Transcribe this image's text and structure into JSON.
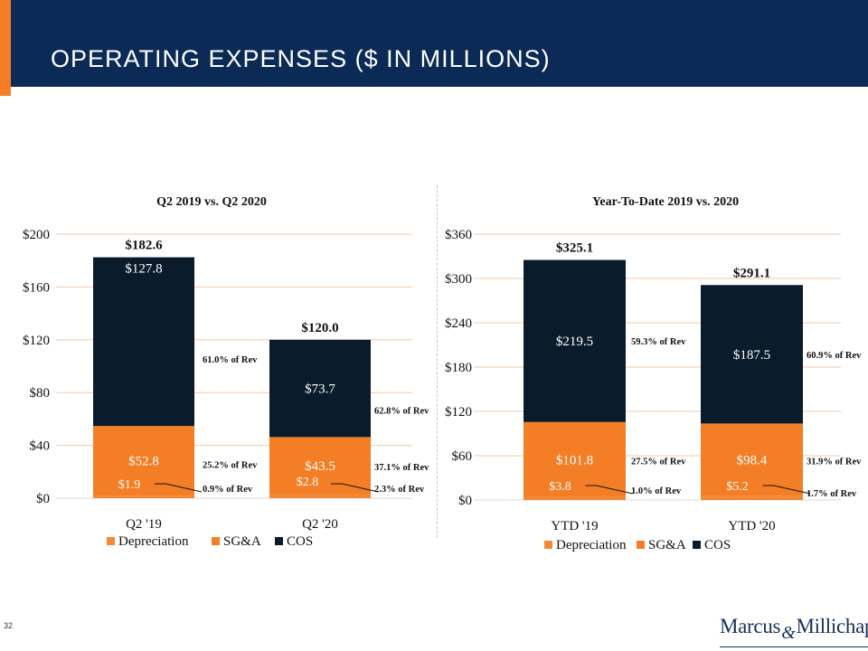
{
  "header": {
    "title": "OPERATING EXPENSES ($ IN MILLIONS)"
  },
  "footer": {
    "page_number": "32",
    "logo_left": "Marcus",
    "logo_amp": "&",
    "logo_right": "Millichap"
  },
  "colors": {
    "header_bg": "#0b2a55",
    "accent": "#f37e26",
    "depreciation": "#f08a36",
    "sga": "#f37e26",
    "cos": "#0a1c2c",
    "grid": "#f0c9a8"
  },
  "chart_data": [
    {
      "type": "bar",
      "stacked": true,
      "title": "Q2 2019 vs. Q2 2020",
      "categories": [
        "Q2 '19",
        "Q2 '20"
      ],
      "ylim": [
        0,
        200
      ],
      "yticks": [
        0,
        40,
        80,
        120,
        160,
        200
      ],
      "ytick_labels": [
        "$0",
        "$40",
        "$80",
        "$120",
        "$160",
        "$200"
      ],
      "totals": [
        182.6,
        120.0
      ],
      "total_labels": [
        "$182.6",
        "$120.0"
      ],
      "series": [
        {
          "name": "Depreciation",
          "values": [
            1.9,
            2.8
          ],
          "labels": [
            "$1.9",
            "$2.8"
          ],
          "pct_labels": [
            "0.9% of Rev",
            "2.3% of Rev"
          ]
        },
        {
          "name": "SG&A",
          "values": [
            52.8,
            43.5
          ],
          "labels": [
            "$52.8",
            "$43.5"
          ],
          "pct_labels": [
            "25.2% of Rev",
            "37.1% of Rev"
          ]
        },
        {
          "name": "COS",
          "values": [
            127.8,
            73.7
          ],
          "labels": [
            "$127.8",
            "$73.7"
          ],
          "pct_labels": [
            "61.0% of Rev",
            "62.8% of Rev"
          ]
        }
      ],
      "legend": [
        "Depreciation",
        "SG&A",
        "COS"
      ]
    },
    {
      "type": "bar",
      "stacked": true,
      "title": "Year-To-Date 2019 vs. 2020",
      "categories": [
        "YTD '19",
        "YTD '20"
      ],
      "ylim": [
        0,
        360
      ],
      "yticks": [
        0,
        60,
        120,
        180,
        240,
        300,
        360
      ],
      "ytick_labels": [
        "$0",
        "$60",
        "$120",
        "$180",
        "$240",
        "$300",
        "$360"
      ],
      "totals": [
        325.1,
        291.1
      ],
      "total_labels": [
        "$325.1",
        "$291.1"
      ],
      "series": [
        {
          "name": "Depreciation",
          "values": [
            3.8,
            5.2
          ],
          "labels": [
            "$3.8",
            "$5.2"
          ],
          "pct_labels": [
            "1.0% of Rev",
            "1.7% of Rev"
          ]
        },
        {
          "name": "SG&A",
          "values": [
            101.8,
            98.4
          ],
          "labels": [
            "$101.8",
            "$98.4"
          ],
          "pct_labels": [
            "27.5% of Rev",
            "31.9% of Rev"
          ]
        },
        {
          "name": "COS",
          "values": [
            219.5,
            187.5
          ],
          "labels": [
            "$219.5",
            "$187.5"
          ],
          "pct_labels": [
            "59.3% of Rev",
            "60.9% of Rev"
          ]
        }
      ],
      "legend": [
        "Depreciation",
        "SG&A",
        "COS"
      ]
    }
  ]
}
